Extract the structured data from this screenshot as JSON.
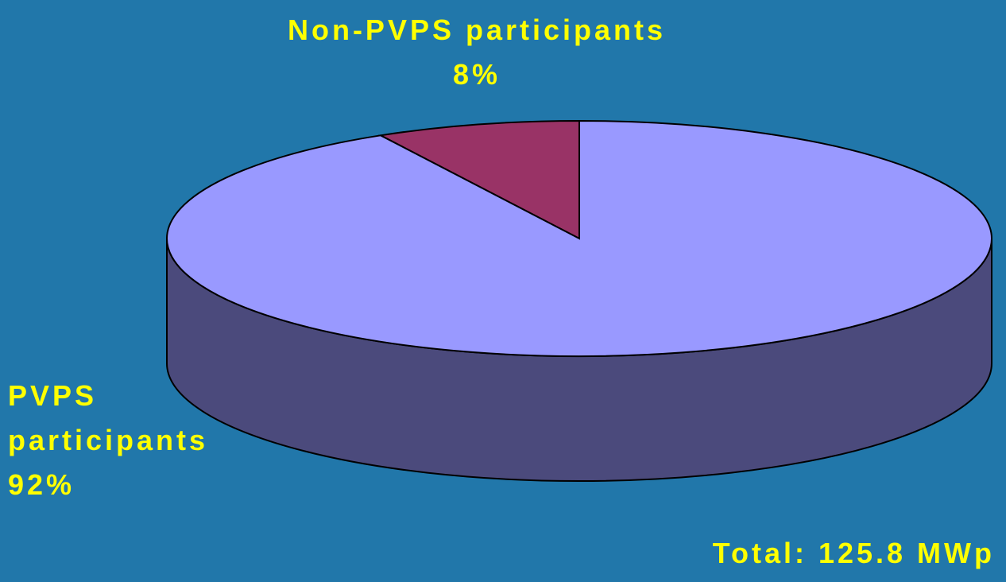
{
  "chart_data": {
    "type": "pie",
    "categories": [
      "Non-PVPS participants",
      "PVPS participants"
    ],
    "values": [
      8,
      92
    ],
    "value_labels": [
      "8%",
      "92%"
    ],
    "colors": [
      "#993366",
      "#9999ff"
    ],
    "annotation": "Total: 125.8 MWp"
  }
}
